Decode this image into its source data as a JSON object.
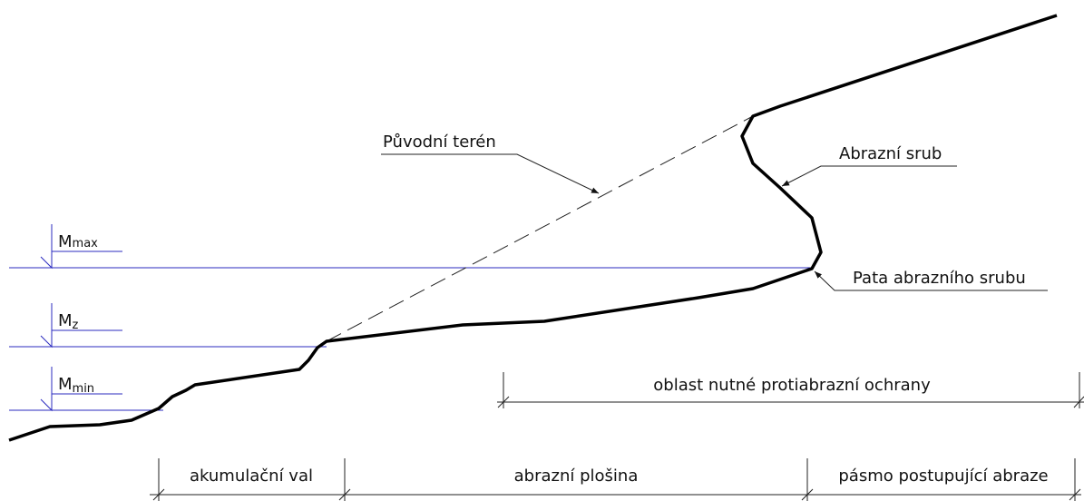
{
  "labels": {
    "original_terrain": "Původní terén",
    "abrasion_cliff": "Abrazní srub",
    "cliff_foot": "Pata abrazního srubu"
  },
  "water_levels": [
    {
      "symbol": "M",
      "subscript": "max"
    },
    {
      "symbol": "M",
      "subscript": "z"
    },
    {
      "symbol": "M",
      "subscript": "min"
    }
  ],
  "zones": {
    "protection": "oblast nutné protiabrazní ochrany",
    "accumulation": "akumulační val",
    "platform": "abrazní plošina",
    "abrasion": "pásmo postupující abraze"
  }
}
